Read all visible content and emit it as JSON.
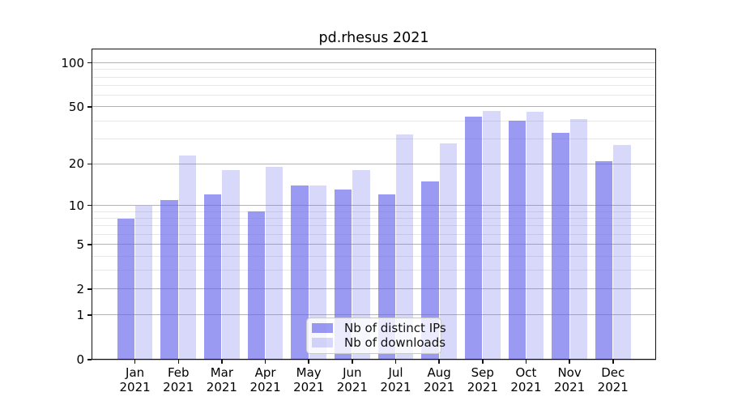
{
  "title": "pd.rhesus 2021",
  "chart_data": {
    "type": "bar",
    "title": "pd.rhesus 2021",
    "categories": [
      "Jan",
      "Feb",
      "Mar",
      "Apr",
      "May",
      "Jun",
      "Jul",
      "Aug",
      "Sep",
      "Oct",
      "Nov",
      "Dec"
    ],
    "year_label": "2021",
    "series": [
      {
        "name": "Nb of distinct IPs",
        "values": [
          8,
          11,
          12,
          9,
          14,
          13,
          12,
          15,
          43,
          40,
          33,
          21
        ],
        "color": "rgba(100,100,235,0.65)"
      },
      {
        "name": "Nb of downloads",
        "values": [
          10,
          23,
          18,
          19,
          14,
          18,
          32,
          28,
          47,
          46,
          41,
          27
        ],
        "color": "rgba(100,100,235,0.25)"
      }
    ],
    "xlabel": "",
    "ylabel": "",
    "y_scale": "log1p",
    "ylim": [
      0,
      125
    ],
    "y_major_ticks": [
      0,
      1,
      2,
      5,
      10,
      20,
      50,
      100
    ],
    "y_minor_ticks": [
      3,
      4,
      6,
      7,
      8,
      9,
      30,
      40,
      60,
      70,
      80,
      90
    ],
    "grid": "both",
    "legend_position": "lower-center"
  },
  "colors": {
    "bar_base": "#6464EB",
    "major_grid": "#b4b4b4",
    "minor_grid": "#e7e7e7",
    "axis": "#111111",
    "text": "#000000",
    "legend_border": "#c9c9c9"
  }
}
